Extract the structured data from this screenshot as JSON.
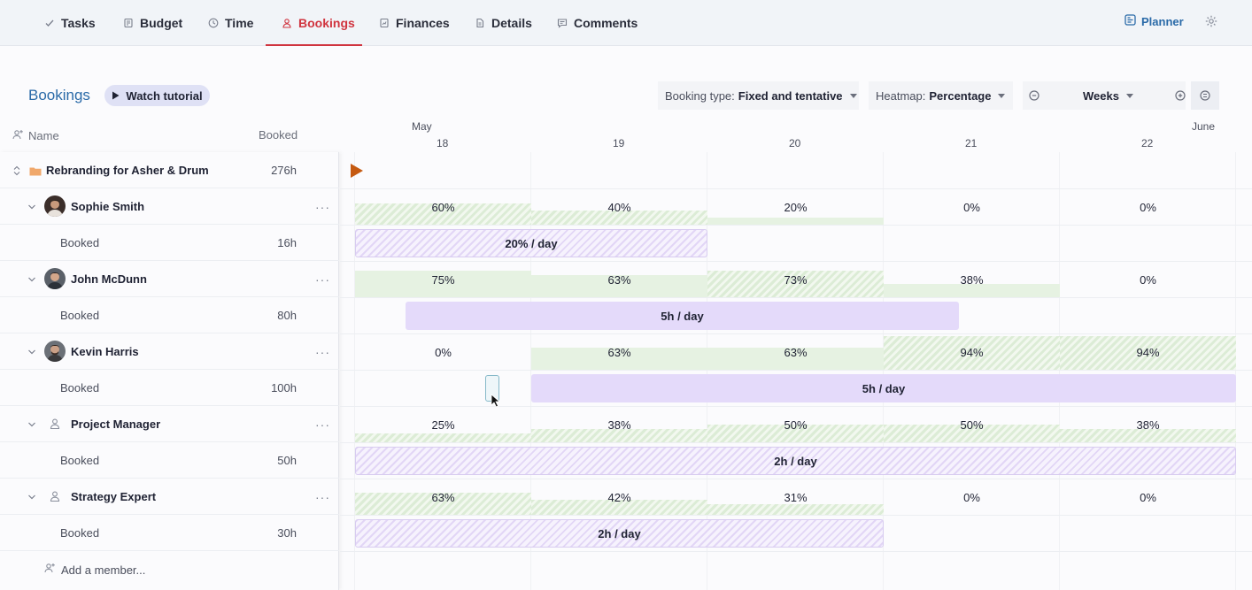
{
  "tabs": [
    {
      "label": "Tasks",
      "icon": "check-icon"
    },
    {
      "label": "Budget",
      "icon": "budget-icon"
    },
    {
      "label": "Time",
      "icon": "clock-icon"
    },
    {
      "label": "Bookings",
      "icon": "person-icon",
      "active": true
    },
    {
      "label": "Finances",
      "icon": "finance-icon"
    },
    {
      "label": "Details",
      "icon": "document-icon"
    },
    {
      "label": "Comments",
      "icon": "comment-icon"
    }
  ],
  "header": {
    "planner_label": "Planner",
    "settings_icon": "gear-icon"
  },
  "page": {
    "title": "Bookings",
    "tutorial_label": "Watch tutorial"
  },
  "controls": {
    "booking_type_label": "Booking type:",
    "booking_type_value": "Fixed and tentative",
    "heatmap_label": "Heatmap:",
    "heatmap_value": "Percentage",
    "zoom_value": "Weeks"
  },
  "columns": {
    "name": "Name",
    "booked": "Booked"
  },
  "timeline": {
    "month_start": "May",
    "month_end": "June",
    "days": [
      "18",
      "19",
      "20",
      "21",
      "22"
    ]
  },
  "project": {
    "name": "Rebranding for Asher & Drum",
    "hours": "276h"
  },
  "members": [
    {
      "name": "Sophie Smith",
      "booked_label": "Booked",
      "booked_hours": "16h",
      "percentages": [
        "60%",
        "40%",
        "20%",
        "0%",
        "0%"
      ],
      "bar_label": "20% / day"
    },
    {
      "name": "John McDunn",
      "booked_label": "Booked",
      "booked_hours": "80h",
      "percentages": [
        "75%",
        "63%",
        "73%",
        "38%",
        "0%"
      ],
      "bar_label": "5h / day"
    },
    {
      "name": "Kevin Harris",
      "booked_label": "Booked",
      "booked_hours": "100h",
      "percentages": [
        "0%",
        "63%",
        "63%",
        "94%",
        "94%"
      ],
      "bar_label": "5h / day"
    },
    {
      "name": "Project Manager",
      "booked_label": "Booked",
      "booked_hours": "50h",
      "percentages": [
        "25%",
        "38%",
        "50%",
        "50%",
        "38%"
      ],
      "bar_label": "2h / day"
    },
    {
      "name": "Strategy Expert",
      "booked_label": "Booked",
      "booked_hours": "30h",
      "percentages": [
        "63%",
        "42%",
        "31%",
        "0%",
        "0%"
      ],
      "bar_label": "2h / day"
    }
  ],
  "add_member_label": "Add a member...",
  "colors": {
    "accent": "#d0343f",
    "link": "#2a6aa8",
    "booking_bar": "#e4dafa",
    "heat": "#e6f2e2"
  }
}
